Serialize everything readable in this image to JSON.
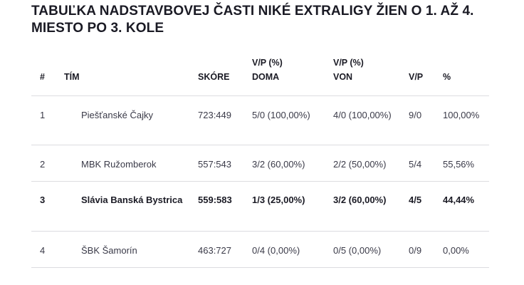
{
  "title": "TABUĽKA NADSTAVBOVEJ ČASTI NIKÉ EXTRALIGY ŽIEN O 1. AŽ 4. MIESTO PO 3. KOLE",
  "headers": {
    "pos": "#",
    "team": "TÍM",
    "score": "SKÓRE",
    "home_line1": "V/P (%)",
    "home_line2": "DOMA",
    "away_line1": "V/P (%)",
    "away_line2": "VON",
    "wl": "V/P",
    "pct": "%"
  },
  "rows": [
    {
      "pos": "1",
      "team": "Piešťanské Čajky",
      "score": "723:449",
      "home": "5/0 (100,00%)",
      "away": "4/0 (100,00%)",
      "wl": "9/0",
      "pct": "100,00%",
      "bold": false
    },
    {
      "pos": "2",
      "team": "MBK Ružomberok",
      "score": "557:543",
      "home": "3/2 (60,00%)",
      "away": "2/2 (50,00%)",
      "wl": "5/4",
      "pct": "55,56%",
      "bold": false
    },
    {
      "pos": "3",
      "team": "Slávia Banská Bystrica",
      "score": "559:583",
      "home": "1/3 (25,00%)",
      "away": "3/2 (60,00%)",
      "wl": "4/5",
      "pct": "44,44%",
      "bold": true
    },
    {
      "pos": "4",
      "team": "ŠBK Šamorín",
      "score": "463:727",
      "home": "0/4 (0,00%)",
      "away": "0/5 (0,00%)",
      "wl": "0/9",
      "pct": "0,00%",
      "bold": false
    }
  ]
}
